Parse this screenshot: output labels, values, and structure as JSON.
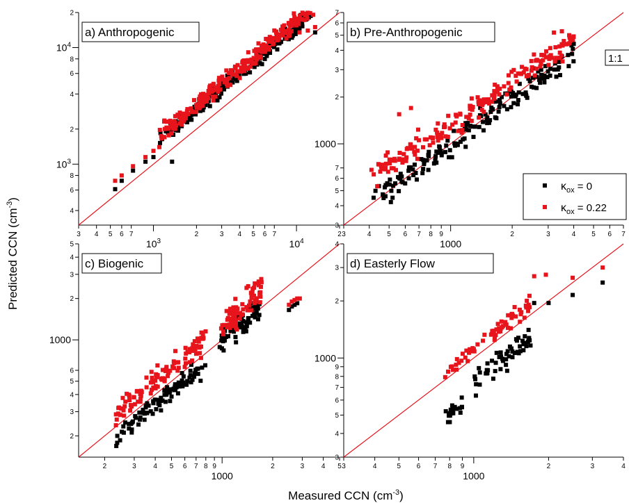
{
  "figure": {
    "xlabel": "Measured CCN (cm",
    "xlabel_sup": "-3",
    "xlabel_end": ")",
    "ylabel": "Predicted CCN (cm",
    "ylabel_sup": "-3",
    "ylabel_end": ")",
    "one_to_one_label": "1:1"
  },
  "legend": {
    "kappa_symbol": "κ",
    "subscript": "ox",
    "entries": [
      {
        "value_text": " = 0",
        "color": "#000000"
      },
      {
        "value_text": " = 0.22",
        "color": "#e8141c"
      }
    ]
  },
  "colors": {
    "one_to_one_line": "#e8141c",
    "series_kox_0": "#000000",
    "series_kox_022": "#e8141c"
  },
  "chart_data": [
    {
      "type": "scatter",
      "title": "a) Anthropogenic",
      "xscale": "log",
      "yscale": "log",
      "xlim": [
        300,
        20000
      ],
      "ylim": [
        300,
        20000
      ],
      "xticks": [
        {
          "v": 300,
          "t": "3"
        },
        {
          "v": 400,
          "t": "4"
        },
        {
          "v": 500,
          "t": "5"
        },
        {
          "v": 600,
          "t": "6"
        },
        {
          "v": 700,
          "t": "7"
        },
        {
          "v": 2000,
          "t": "2"
        },
        {
          "v": 3000,
          "t": "3"
        },
        {
          "v": 4000,
          "t": "4"
        },
        {
          "v": 5000,
          "t": "5"
        },
        {
          "v": 6000,
          "t": "6"
        },
        {
          "v": 7000,
          "t": "7"
        },
        {
          "v": 20000,
          "t": "2"
        }
      ],
      "xmajor": [
        {
          "v": 1000,
          "b": "10",
          "e": "3"
        },
        {
          "v": 10000,
          "b": "10",
          "e": "4"
        }
      ],
      "yticks": [
        {
          "v": 400,
          "t": "4"
        },
        {
          "v": 600,
          "t": "6"
        },
        {
          "v": 800,
          "t": "8"
        },
        {
          "v": 2000,
          "t": "2"
        },
        {
          "v": 4000,
          "t": "4"
        },
        {
          "v": 6000,
          "t": "6"
        },
        {
          "v": 8000,
          "t": "8"
        },
        {
          "v": 20000,
          "t": "2"
        }
      ],
      "ymajor": [
        {
          "v": 1000,
          "b": "10",
          "e": "3"
        },
        {
          "v": 10000,
          "b": "10",
          "e": "4"
        }
      ],
      "one_to_one": true,
      "clusters": [
        {
          "s": 0,
          "x0": 1100,
          "x1": 13000,
          "n": 230,
          "slope": 1.03,
          "offset": 0.16,
          "jit": 0.06
        },
        {
          "s": 1,
          "x0": 1100,
          "x1": 13500,
          "n": 280,
          "slope": 1.03,
          "offset": 0.2,
          "jit": 0.06
        }
      ],
      "points": [
        {
          "s": 0,
          "x": 540,
          "y": 610
        },
        {
          "s": 0,
          "x": 600,
          "y": 720
        },
        {
          "s": 0,
          "x": 720,
          "y": 880
        },
        {
          "s": 0,
          "x": 880,
          "y": 1050
        },
        {
          "s": 0,
          "x": 1000,
          "y": 1150
        },
        {
          "s": 0,
          "x": 1350,
          "y": 1050
        },
        {
          "s": 1,
          "x": 540,
          "y": 720
        },
        {
          "s": 1,
          "x": 600,
          "y": 800
        },
        {
          "s": 1,
          "x": 720,
          "y": 960
        },
        {
          "s": 1,
          "x": 880,
          "y": 1150
        },
        {
          "s": 1,
          "x": 1000,
          "y": 1300
        },
        {
          "s": 1,
          "x": 1100,
          "y": 1400
        },
        {
          "s": 1,
          "x": 8500,
          "y": 12000
        },
        {
          "s": 1,
          "x": 10500,
          "y": 13500
        },
        {
          "s": 1,
          "x": 12000,
          "y": 14000
        },
        {
          "s": 1,
          "x": 13500,
          "y": 15000
        },
        {
          "s": 0,
          "x": 13500,
          "y": 13500
        }
      ]
    },
    {
      "type": "scatter",
      "title": "b) Pre-Anthropogenic",
      "xscale": "log",
      "yscale": "log",
      "xlim": [
        300,
        7000
      ],
      "ylim": [
        300,
        7000
      ],
      "xticks": [
        {
          "v": 300,
          "t": "3"
        },
        {
          "v": 400,
          "t": "4"
        },
        {
          "v": 500,
          "t": "5"
        },
        {
          "v": 600,
          "t": "6"
        },
        {
          "v": 700,
          "t": "7"
        },
        {
          "v": 800,
          "t": "8"
        },
        {
          "v": 900,
          "t": "9"
        },
        {
          "v": 2000,
          "t": "2"
        },
        {
          "v": 3000,
          "t": "3"
        },
        {
          "v": 4000,
          "t": "4"
        },
        {
          "v": 5000,
          "t": "5"
        },
        {
          "v": 6000,
          "t": "6"
        },
        {
          "v": 7000,
          "t": "7"
        }
      ],
      "xmajor": [
        {
          "v": 1000,
          "t": "1000"
        }
      ],
      "yticks": [
        {
          "v": 300,
          "t": "3"
        },
        {
          "v": 400,
          "t": "4"
        },
        {
          "v": 500,
          "t": "5"
        },
        {
          "v": 600,
          "t": "6"
        },
        {
          "v": 700,
          "t": "7"
        },
        {
          "v": 2000,
          "t": "2"
        },
        {
          "v": 3000,
          "t": "3"
        },
        {
          "v": 4000,
          "t": "4"
        },
        {
          "v": 5000,
          "t": "5"
        },
        {
          "v": 6000,
          "t": "6"
        },
        {
          "v": 7000,
          "t": "7"
        }
      ],
      "ymajor": [
        {
          "v": 1000,
          "t": "1000"
        }
      ],
      "one_to_one": true,
      "clusters": [
        {
          "s": 0,
          "x0": 420,
          "x1": 4000,
          "n": 170,
          "slope": 0.95,
          "offset": 0.02,
          "jit": 0.07
        },
        {
          "s": 1,
          "x0": 420,
          "x1": 4000,
          "n": 190,
          "slope": 0.88,
          "offset": 0.17,
          "jit": 0.07
        }
      ],
      "points": [
        {
          "s": 0,
          "x": 420,
          "y": 450
        },
        {
          "s": 0,
          "x": 480,
          "y": 460
        },
        {
          "s": 0,
          "x": 520,
          "y": 450
        },
        {
          "s": 1,
          "x": 410,
          "y": 680
        },
        {
          "s": 1,
          "x": 480,
          "y": 700
        },
        {
          "s": 1,
          "x": 560,
          "y": 1550
        },
        {
          "s": 1,
          "x": 640,
          "y": 1700
        },
        {
          "s": 1,
          "x": 3200,
          "y": 5200
        },
        {
          "s": 1,
          "x": 3500,
          "y": 5300
        },
        {
          "s": 1,
          "x": 3800,
          "y": 5000
        },
        {
          "s": 0,
          "x": 3900,
          "y": 4300
        },
        {
          "s": 0,
          "x": 4000,
          "y": 4400
        }
      ]
    },
    {
      "type": "scatter",
      "title": "c) Biogenic",
      "xscale": "log",
      "yscale": "log",
      "xlim": [
        140,
        5000
      ],
      "ylim": [
        140,
        5000
      ],
      "xticks": [
        {
          "v": 200,
          "t": "2"
        },
        {
          "v": 300,
          "t": "3"
        },
        {
          "v": 400,
          "t": "4"
        },
        {
          "v": 500,
          "t": "5"
        },
        {
          "v": 600,
          "t": "6"
        },
        {
          "v": 700,
          "t": "7"
        },
        {
          "v": 800,
          "t": "8"
        },
        {
          "v": 900,
          "t": "9"
        },
        {
          "v": 2000,
          "t": "2"
        },
        {
          "v": 3000,
          "t": "3"
        },
        {
          "v": 4000,
          "t": "4"
        },
        {
          "v": 5000,
          "t": "5"
        }
      ],
      "xmajor": [
        {
          "v": 1000,
          "t": "1000"
        }
      ],
      "yticks": [
        {
          "v": 200,
          "t": "2"
        },
        {
          "v": 300,
          "t": "3"
        },
        {
          "v": 400,
          "t": "4"
        },
        {
          "v": 500,
          "t": "5"
        },
        {
          "v": 600,
          "t": "6"
        },
        {
          "v": 2000,
          "t": "2"
        },
        {
          "v": 3000,
          "t": "3"
        },
        {
          "v": 4000,
          "t": "4"
        },
        {
          "v": 5000,
          "t": "5"
        }
      ],
      "ymajor": [
        {
          "v": 1000,
          "t": "1000"
        }
      ],
      "one_to_one": true,
      "clusters": [
        {
          "s": 0,
          "x0": 230,
          "x1": 800,
          "n": 95,
          "slope": 1.0,
          "offset": -0.08,
          "jit": 0.06
        },
        {
          "s": 1,
          "x0": 230,
          "x1": 800,
          "n": 110,
          "slope": 1.0,
          "offset": 0.1,
          "jit": 0.08
        },
        {
          "s": 0,
          "x0": 950,
          "x1": 1700,
          "n": 70,
          "slope": 1.2,
          "offset": -0.02,
          "jit": 0.08
        },
        {
          "s": 1,
          "x0": 950,
          "x1": 1750,
          "n": 80,
          "slope": 1.2,
          "offset": 0.08,
          "jit": 0.08
        }
      ],
      "points": [
        {
          "s": 0,
          "x": 2500,
          "y": 1650
        },
        {
          "s": 0,
          "x": 2600,
          "y": 1750
        },
        {
          "s": 0,
          "x": 2700,
          "y": 1800
        },
        {
          "s": 0,
          "x": 2800,
          "y": 1850
        },
        {
          "s": 1,
          "x": 2500,
          "y": 1800
        },
        {
          "s": 1,
          "x": 2600,
          "y": 1900
        },
        {
          "s": 1,
          "x": 2700,
          "y": 1950
        },
        {
          "s": 1,
          "x": 2800,
          "y": 2000
        },
        {
          "s": 1,
          "x": 2900,
          "y": 2000
        },
        {
          "s": 1,
          "x": 1650,
          "y": 2500
        },
        {
          "s": 1,
          "x": 1550,
          "y": 2400
        }
      ]
    },
    {
      "type": "scatter",
      "title": "d) Easterly Flow",
      "xscale": "log",
      "yscale": "log",
      "xlim": [
        300,
        4000
      ],
      "ylim": [
        300,
        4000
      ],
      "xticks": [
        {
          "v": 300,
          "t": "3"
        },
        {
          "v": 400,
          "t": "4"
        },
        {
          "v": 500,
          "t": "5"
        },
        {
          "v": 600,
          "t": "6"
        },
        {
          "v": 700,
          "t": "7"
        },
        {
          "v": 800,
          "t": "8"
        },
        {
          "v": 900,
          "t": "9"
        },
        {
          "v": 2000,
          "t": "2"
        },
        {
          "v": 3000,
          "t": "3"
        },
        {
          "v": 4000,
          "t": "4"
        }
      ],
      "xmajor": [
        {
          "v": 1000,
          "t": "1000"
        }
      ],
      "yticks": [
        {
          "v": 300,
          "t": "3"
        },
        {
          "v": 400,
          "t": "4"
        },
        {
          "v": 500,
          "t": "5"
        },
        {
          "v": 600,
          "t": "6"
        },
        {
          "v": 700,
          "t": "7"
        },
        {
          "v": 800,
          "t": "8"
        },
        {
          "v": 900,
          "t": "9"
        },
        {
          "v": 2000,
          "t": "2"
        },
        {
          "v": 3000,
          "t": "3"
        },
        {
          "v": 4000,
          "t": "4"
        }
      ],
      "ymajor": [
        {
          "v": 1000,
          "t": "1000"
        }
      ],
      "one_to_one": true,
      "clusters": [
        {
          "s": 0,
          "x0": 760,
          "x1": 900,
          "n": 20,
          "slope": 1.0,
          "offset": -0.2,
          "jit": 0.04
        },
        {
          "s": 0,
          "x0": 1000,
          "x1": 1700,
          "n": 55,
          "slope": 1.0,
          "offset": -0.12,
          "jit": 0.06
        },
        {
          "s": 1,
          "x0": 760,
          "x1": 1700,
          "n": 65,
          "slope": 1.0,
          "offset": 0.05,
          "jit": 0.04
        }
      ],
      "points": [
        {
          "s": 0,
          "x": 1750,
          "y": 1950
        },
        {
          "s": 0,
          "x": 2000,
          "y": 1950
        },
        {
          "s": 0,
          "x": 2500,
          "y": 2150
        },
        {
          "s": 0,
          "x": 3300,
          "y": 2500
        },
        {
          "s": 1,
          "x": 1750,
          "y": 2700
        },
        {
          "s": 1,
          "x": 1950,
          "y": 2750
        },
        {
          "s": 1,
          "x": 2500,
          "y": 2650
        },
        {
          "s": 1,
          "x": 3300,
          "y": 3000
        }
      ]
    }
  ]
}
